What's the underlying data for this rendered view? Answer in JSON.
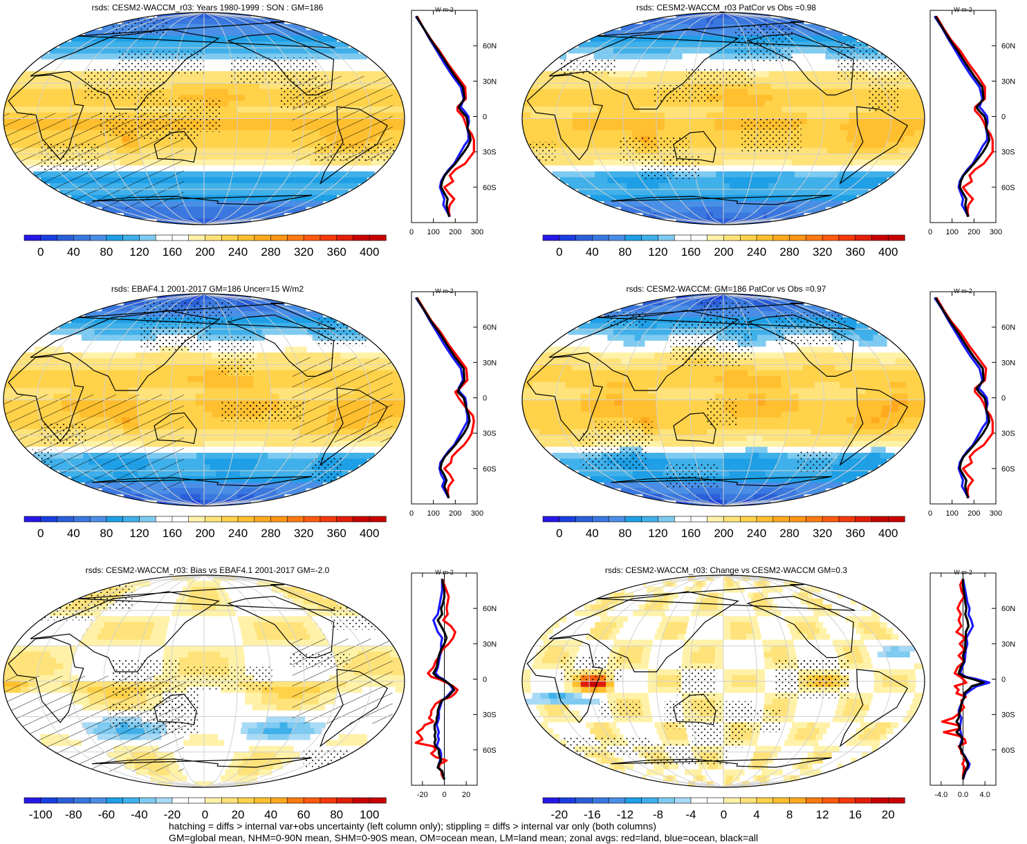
{
  "figure": {
    "footer_lines": [
      "hatching = diffs > internal var+obs uncertainty (left column only); stippling = diffs > internal var only (both columns)",
      "GM=global mean, NHM=0-90N mean, SHM=0-90S mean, OM=ocean mean, LM=land mean; zonal avgs: red=land, blue=ocean, black=all"
    ]
  },
  "colorbars": {
    "absolute": {
      "labels": [
        "0",
        "40",
        "80",
        "120",
        "160",
        "200",
        "240",
        "280",
        "320",
        "360",
        "400"
      ],
      "vmin": -20,
      "vmax": 420,
      "colors": [
        "#2617e6",
        "#1a3ee0",
        "#2b5fd9",
        "#3a78e0",
        "#4a8ee6",
        "#1e9fe6",
        "#3fb0ea",
        "#7ecaf0",
        "#ffffff",
        "#ffffff",
        "#fff2a8",
        "#ffe37a",
        "#ffd24a",
        "#ffbf2e",
        "#ffa91f",
        "#ff9514",
        "#ff7a10",
        "#ff5a0e",
        "#f4390c",
        "#e01e0a",
        "#c80000",
        "#c80000"
      ]
    },
    "bias": {
      "labels": [
        "-100",
        "-80",
        "-60",
        "-40",
        "-20",
        "0",
        "20",
        "40",
        "60",
        "80",
        "100"
      ],
      "vmin": -110,
      "vmax": 110,
      "colors": [
        "#2617e6",
        "#1a3ee0",
        "#2b5fd9",
        "#3a78e0",
        "#4a8ee6",
        "#1e9fe6",
        "#3fb0ea",
        "#7ecaf0",
        "#a8daf5",
        "#ffffff",
        "#ffffff",
        "#fff2a8",
        "#ffe37a",
        "#ffd24a",
        "#ffbf2e",
        "#ffa91f",
        "#ff7a10",
        "#ff5a0e",
        "#f4390c",
        "#e01e0a",
        "#c80000",
        "#c80000"
      ]
    },
    "change": {
      "labels": [
        "-20",
        "-16",
        "-12",
        "-8",
        "-4",
        "0",
        "4",
        "8",
        "12",
        "16",
        "20"
      ],
      "vmin": -22,
      "vmax": 22,
      "colors": [
        "#2617e6",
        "#1a3ee0",
        "#2b5fd9",
        "#3a78e0",
        "#4a8ee6",
        "#1e9fe6",
        "#3fb0ea",
        "#7ecaf0",
        "#a8daf5",
        "#ffffff",
        "#ffffff",
        "#fff2a8",
        "#ffe37a",
        "#ffd24a",
        "#ffbf2e",
        "#ffa91f",
        "#ff7a10",
        "#ff5a0e",
        "#f4390c",
        "#e01e0a",
        "#c80000",
        "#c80000"
      ]
    }
  },
  "chart_data": [
    {
      "type": "heatmap",
      "title": "rsds: CESM2-WACCM_r03: Years 1980-1999 : SON : GM=186",
      "colorbar": "absolute",
      "hatching": true,
      "stippling": true,
      "zonal": {
        "units": "W m-2",
        "xlim": [
          0,
          300
        ],
        "xticks": [
          "0",
          "100",
          "200",
          "300"
        ],
        "yticks": [
          "60N",
          "30N",
          "0",
          "30S",
          "60S"
        ],
        "lat": [
          85,
          75,
          65,
          55,
          45,
          35,
          25,
          15,
          8,
          5,
          0,
          -5,
          -10,
          -15,
          -20,
          -25,
          -30,
          -35,
          -40,
          -45,
          -50,
          -55,
          -60,
          -65,
          -70,
          -75,
          -80,
          -85
        ],
        "land": [
          25,
          55,
          90,
          130,
          165,
          205,
          245,
          248,
          210,
          210,
          235,
          245,
          255,
          275,
          285,
          285,
          285,
          265,
          245,
          200,
          175,
          190,
          150,
          170,
          195,
          175,
          170,
          175
        ],
        "ocean": [
          20,
          55,
          85,
          118,
          150,
          185,
          225,
          238,
          225,
          240,
          260,
          262,
          255,
          260,
          260,
          240,
          225,
          210,
          195,
          170,
          150,
          135,
          130,
          140,
          150,
          145,
          160,
          175
        ],
        "all": [
          22,
          55,
          88,
          125,
          160,
          195,
          235,
          242,
          215,
          225,
          250,
          257,
          255,
          265,
          270,
          258,
          240,
          220,
          200,
          175,
          152,
          140,
          135,
          150,
          165,
          160,
          165,
          172
        ]
      }
    },
    {
      "type": "heatmap",
      "title": "rsds: CESM2-WACCM_r03 PatCor vs Obs =0.98",
      "colorbar": "absolute",
      "hatching": false,
      "stippling": true,
      "zonal": {
        "units": "W m-2",
        "xlim": [
          0,
          300
        ],
        "xticks": [
          "0",
          "100",
          "200",
          "300"
        ],
        "yticks": [
          "60N",
          "30N",
          "0",
          "30S",
          "60S"
        ],
        "lat": [
          85,
          75,
          65,
          55,
          45,
          35,
          25,
          15,
          8,
          5,
          0,
          -5,
          -10,
          -15,
          -20,
          -25,
          -30,
          -35,
          -40,
          -45,
          -50,
          -55,
          -60,
          -65,
          -70,
          -75,
          -80,
          -85
        ],
        "land": [
          28,
          60,
          95,
          140,
          175,
          215,
          250,
          250,
          205,
          205,
          230,
          245,
          255,
          275,
          285,
          285,
          285,
          265,
          245,
          205,
          180,
          190,
          150,
          170,
          195,
          175,
          170,
          175
        ],
        "ocean": [
          20,
          55,
          85,
          118,
          150,
          185,
          225,
          238,
          225,
          240,
          260,
          262,
          255,
          260,
          260,
          240,
          225,
          210,
          195,
          170,
          150,
          135,
          130,
          140,
          150,
          145,
          160,
          175
        ],
        "all": [
          24,
          57,
          90,
          128,
          162,
          198,
          238,
          244,
          212,
          222,
          248,
          256,
          256,
          265,
          270,
          258,
          242,
          222,
          200,
          176,
          152,
          140,
          135,
          150,
          165,
          160,
          165,
          172
        ]
      }
    },
    {
      "type": "heatmap",
      "title": "rsds: EBAF4.1 2001-2017 GM=186 Uncer=15 W/m2",
      "colorbar": "absolute",
      "hatching": true,
      "stippling": true,
      "zonal": {
        "units": "W m-2",
        "xlim": [
          0,
          300
        ],
        "xticks": [
          "0",
          "100",
          "200",
          "300"
        ],
        "yticks": [
          "60N",
          "30N",
          "0",
          "30S",
          "60S"
        ],
        "lat": [
          85,
          75,
          65,
          55,
          45,
          35,
          25,
          15,
          8,
          5,
          0,
          -5,
          -10,
          -15,
          -20,
          -25,
          -30,
          -35,
          -40,
          -45,
          -50,
          -55,
          -60,
          -65,
          -70,
          -75,
          -80,
          -85
        ],
        "land": [
          25,
          58,
          92,
          135,
          170,
          210,
          250,
          255,
          220,
          200,
          215,
          235,
          255,
          280,
          285,
          280,
          275,
          260,
          240,
          210,
          185,
          180,
          150,
          175,
          190,
          170,
          165,
          170
        ],
        "ocean": [
          20,
          55,
          85,
          118,
          150,
          185,
          225,
          235,
          215,
          220,
          245,
          250,
          250,
          255,
          255,
          240,
          225,
          210,
          195,
          170,
          150,
          132,
          128,
          135,
          150,
          140,
          155,
          170
        ],
        "all": [
          22,
          56,
          89,
          128,
          162,
          197,
          238,
          242,
          218,
          212,
          238,
          246,
          252,
          262,
          265,
          255,
          240,
          220,
          200,
          176,
          152,
          138,
          132,
          148,
          160,
          150,
          160,
          170
        ]
      }
    },
    {
      "type": "heatmap",
      "title": "rsds: CESM2-WACCM: GM=186 PatCor vs Obs =0.97",
      "colorbar": "absolute",
      "hatching": false,
      "stippling": true,
      "zonal": {
        "units": "W m-2",
        "xlim": [
          0,
          300
        ],
        "xticks": [
          "0",
          "100",
          "200",
          "300"
        ],
        "yticks": [
          "60N",
          "30N",
          "0",
          "30S",
          "60S"
        ],
        "lat": [
          85,
          75,
          65,
          55,
          45,
          35,
          25,
          15,
          8,
          5,
          0,
          -5,
          -10,
          -15,
          -20,
          -25,
          -30,
          -35,
          -40,
          -45,
          -50,
          -55,
          -60,
          -65,
          -70,
          -75,
          -80,
          -85
        ],
        "land": [
          28,
          60,
          95,
          140,
          175,
          215,
          255,
          250,
          205,
          205,
          230,
          245,
          255,
          275,
          285,
          285,
          285,
          265,
          245,
          205,
          180,
          190,
          150,
          170,
          195,
          175,
          170,
          175
        ],
        "ocean": [
          20,
          55,
          85,
          118,
          150,
          185,
          225,
          238,
          222,
          238,
          258,
          262,
          255,
          260,
          260,
          240,
          225,
          210,
          195,
          170,
          150,
          135,
          130,
          140,
          150,
          145,
          160,
          175
        ],
        "all": [
          24,
          57,
          90,
          128,
          162,
          198,
          240,
          244,
          212,
          222,
          248,
          256,
          256,
          265,
          270,
          258,
          242,
          222,
          200,
          176,
          152,
          140,
          135,
          150,
          165,
          160,
          165,
          172
        ]
      }
    },
    {
      "type": "heatmap",
      "title": "rsds: CESM2-WACCM_r03: Bias vs EBAF4.1 2001-2017  GM=-2.0",
      "colorbar": "bias",
      "hatching": true,
      "stippling": true,
      "zonal": {
        "units": "W m-2",
        "xlim": [
          -30,
          30
        ],
        "xticks": [
          "-20",
          "0",
          "20"
        ],
        "yticks": [
          "60N",
          "30N",
          "0",
          "30S",
          "60S"
        ],
        "lat": [
          85,
          80,
          75,
          70,
          65,
          60,
          55,
          50,
          45,
          40,
          35,
          30,
          25,
          20,
          15,
          10,
          5,
          2,
          0,
          -3,
          -6,
          -9,
          -12,
          -15,
          -18,
          -21,
          -24,
          -27,
          -30,
          -33,
          -36,
          -39,
          -42,
          -45,
          -48,
          -51,
          -54,
          -57,
          -60,
          -63,
          -66,
          -69,
          -72,
          -75,
          -78,
          -82,
          -85
        ],
        "land": [
          -2,
          0,
          2,
          4,
          3,
          2,
          3,
          -1,
          6,
          10,
          8,
          4,
          -2,
          -4,
          -8,
          -10,
          -15,
          -12,
          -5,
          2,
          8,
          12,
          10,
          6,
          -3,
          -8,
          -10,
          -12,
          -12,
          -14,
          -10,
          -18,
          -20,
          -25,
          -22,
          -20,
          -26,
          -10,
          -8,
          -12,
          -8,
          2,
          -4,
          -5,
          -3,
          -2,
          0
        ],
        "ocean": [
          -2,
          -2,
          -2,
          -3,
          -4,
          -5,
          -6,
          -10,
          -8,
          -6,
          -2,
          -3,
          -3,
          -4,
          -5,
          -6,
          -8,
          -5,
          -1,
          3,
          6,
          8,
          5,
          2,
          -2,
          -3,
          -4,
          -5,
          -5,
          -5,
          -6,
          -7,
          -6,
          -5,
          -6,
          -5,
          -6,
          -7,
          -4,
          -3,
          -3,
          -4,
          -5,
          -6,
          -2,
          -1,
          0
        ],
        "all": [
          -2,
          -1,
          0,
          0,
          -1,
          -3,
          -2,
          -6,
          -3,
          0,
          2,
          0,
          -3,
          -5,
          -6,
          -7,
          -10,
          -7,
          -2,
          3,
          7,
          9,
          6,
          3,
          -2,
          -4,
          -5,
          -6,
          -6,
          -7,
          -7,
          -9,
          -9,
          -8,
          -9,
          -8,
          -9,
          -8,
          -5,
          -5,
          -4,
          -3,
          -5,
          -6,
          -2,
          -1,
          0
        ]
      }
    },
    {
      "type": "heatmap",
      "title": "rsds: CESM2-WACCM_r03: Change vs CESM2-WACCM GM=0.3",
      "colorbar": "change",
      "hatching": false,
      "stippling": true,
      "zonal": {
        "units": "W m-2",
        "xlim": [
          -6,
          6
        ],
        "xticks": [
          "-4.0",
          "0.0",
          "4.0"
        ],
        "yticks": [
          "60N",
          "30N",
          "0",
          "30S",
          "60S"
        ],
        "lat": [
          85,
          80,
          75,
          70,
          65,
          60,
          55,
          50,
          45,
          40,
          35,
          30,
          25,
          20,
          15,
          10,
          5,
          2,
          0,
          -3,
          -6,
          -9,
          -12,
          -15,
          -18,
          -21,
          -24,
          -27,
          -30,
          -33,
          -36,
          -39,
          -42,
          -45,
          -48,
          -51,
          -54,
          -57,
          -60,
          -63,
          -66,
          -69,
          -72,
          -75,
          -78,
          -82,
          -85
        ],
        "land": [
          0,
          -0.5,
          -0.3,
          0.2,
          -0.5,
          -1,
          -0.4,
          -0.8,
          -0.3,
          -1.2,
          0.5,
          -0.6,
          0.3,
          -0.8,
          0.2,
          -1,
          -1.5,
          -0.5,
          0,
          0.6,
          -1.5,
          -0.8,
          -1.2,
          0.5,
          -0.3,
          -0.2,
          0.2,
          -0.4,
          -1,
          -1.8,
          -3.8,
          -1,
          -0.5,
          -3.5,
          -0.8,
          0.3,
          0.5,
          -0.8,
          -0.4,
          -0.3,
          0.4,
          0.2,
          -0.1,
          0.3,
          0.1,
          0,
          0
        ],
        "ocean": [
          0,
          0.2,
          0.4,
          0.6,
          0.8,
          1.2,
          1.0,
          1.5,
          1.8,
          1.2,
          0.6,
          0.8,
          0.5,
          0.4,
          0.3,
          -0.2,
          -0.5,
          0.5,
          2.5,
          4.8,
          2.5,
          1.5,
          0.6,
          0.2,
          0.0,
          -0.3,
          -0.6,
          -0.8,
          -0.6,
          -0.3,
          -0.4,
          -0.5,
          -0.6,
          -0.4,
          -0.3,
          -0.2,
          -0.4,
          -0.6,
          -0.3,
          0.0,
          0.4,
          0.8,
          1.2,
          1.0,
          0.5,
          0.2,
          0
        ],
        "all": [
          0,
          0,
          0.1,
          0.3,
          0.4,
          0.6,
          0.4,
          0.8,
          1.0,
          0.5,
          0.5,
          0.4,
          0.4,
          0.0,
          0.2,
          -0.4,
          -0.8,
          0.2,
          1.8,
          3.8,
          1.6,
          1.0,
          0.2,
          0.3,
          -0.1,
          -0.3,
          -0.4,
          -0.6,
          -0.7,
          -0.8,
          -1.2,
          -0.7,
          -0.6,
          -1.2,
          -0.4,
          -0.1,
          -0.2,
          -0.6,
          -0.3,
          -0.1,
          0.4,
          0.6,
          0.9,
          0.8,
          0.4,
          0.1,
          0
        ]
      }
    }
  ]
}
